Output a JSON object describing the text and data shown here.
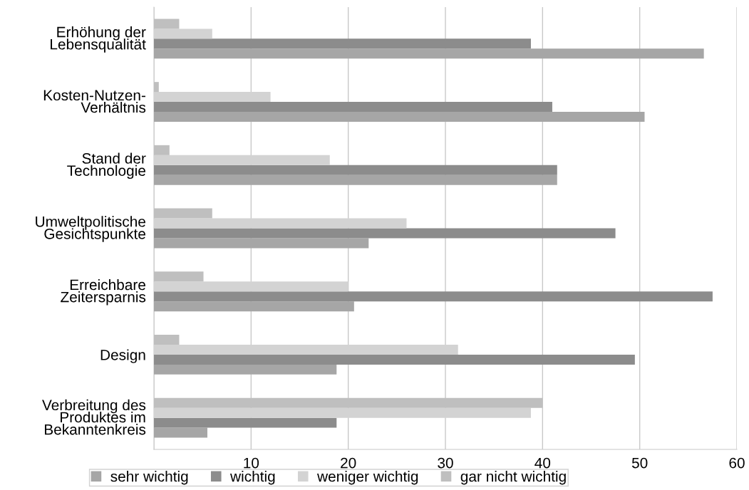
{
  "chart_data": {
    "type": "bar",
    "orientation": "horizontal",
    "categories": [
      "Erhöhung der\nLebensqualität",
      "Kosten-Nutzen-\nVerhältnis",
      "Stand der\nTechnologie",
      "Umweltpolitische\nGesichtspunkte",
      "Erreichbare\nZeitersparnis",
      "Design",
      "Verbreitung des\nProduktes im\nBekanntenkreis"
    ],
    "series": [
      {
        "name": "sehr wichtig",
        "color": "#a6a6a6",
        "values": [
          56.6,
          50.5,
          41.5,
          22.1,
          20.6,
          18.8,
          5.5
        ]
      },
      {
        "name": "wichtig",
        "color": "#8c8c8c",
        "values": [
          38.8,
          41.0,
          41.5,
          47.5,
          57.5,
          49.5,
          18.8
        ]
      },
      {
        "name": "weniger wichtig",
        "color": "#d3d3d3",
        "values": [
          6.0,
          12.0,
          18.1,
          26.0,
          20.0,
          31.3,
          38.8
        ]
      },
      {
        "name": "gar nicht wichtig",
        "color": "#bfbfbf",
        "values": [
          2.6,
          0.5,
          1.6,
          6.0,
          5.1,
          2.6,
          40.0
        ]
      }
    ],
    "xlim": [
      0,
      60
    ],
    "xticks": [
      {
        "value": 0,
        "label": null
      },
      10,
      20,
      30,
      40,
      50,
      60
    ],
    "grid": "x",
    "legend": "bottom"
  }
}
